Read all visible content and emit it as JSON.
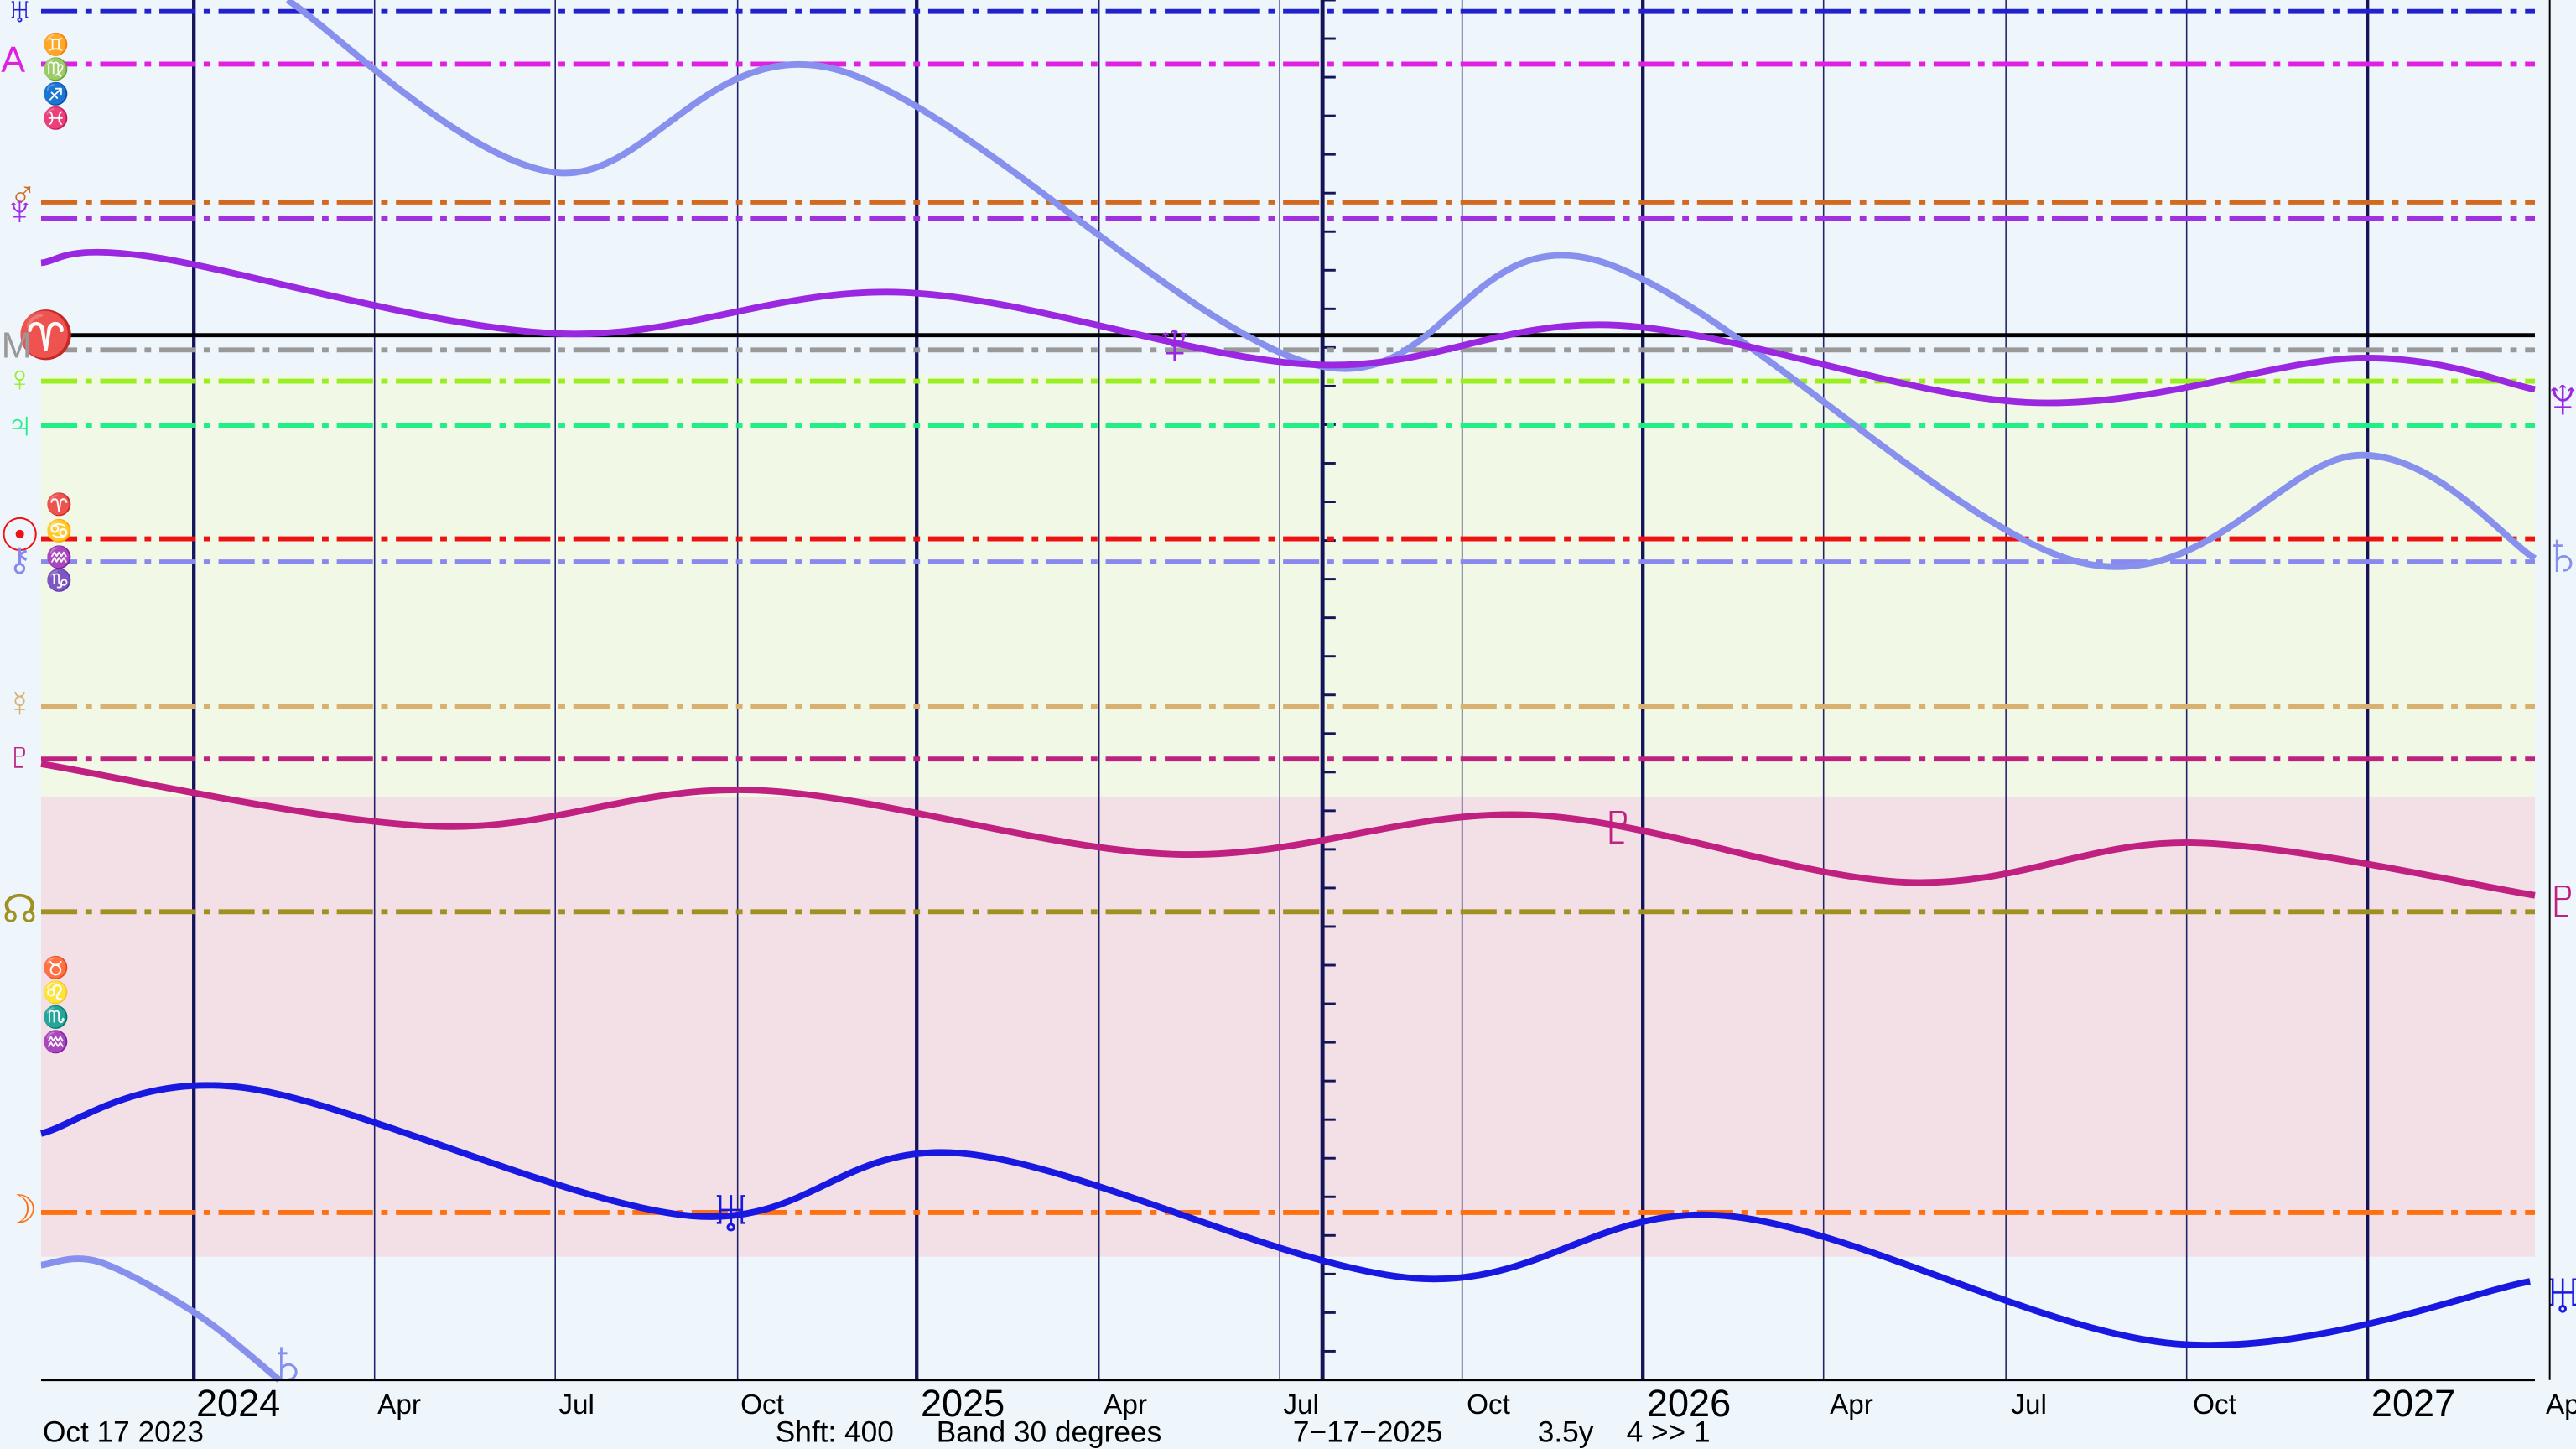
{
  "axis": {
    "years": [
      "2024",
      "2025",
      "2026",
      "2027"
    ],
    "months": [
      "Apr",
      "Jul",
      "Oct",
      "Apr",
      "Jul",
      "Oct",
      "Apr",
      "Jul",
      "Oct",
      "Ap"
    ]
  },
  "footer": {
    "start": "Oct 17  2023",
    "shift": "Shft: 400",
    "band": "Band 30 degrees",
    "date": "7−17−2025",
    "span": "3.5y",
    "ratio": "4 >> 1"
  },
  "left_glyphs": [
    "♅",
    "A",
    "♊",
    "♍",
    "♐",
    "♓",
    "♂",
    "♆",
    "♈",
    "M",
    "♀",
    "♃",
    "☉",
    "♈",
    "♋",
    "♒",
    "♑",
    "⚷",
    "☿",
    "♇",
    "☊",
    "♉",
    "♌",
    "♏",
    "♒",
    "☽"
  ],
  "right_glyphs": [
    "♆",
    "♄",
    "♇",
    "♅"
  ],
  "curve_glyphs": [
    "♆",
    "♇",
    "♅",
    "♄"
  ]
}
